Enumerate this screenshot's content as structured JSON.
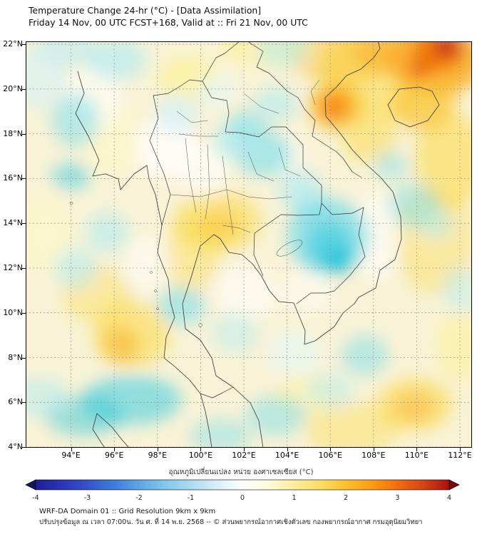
{
  "header": {
    "title": "Temperature Change 24-hr (°C) - [Data Assimilation]",
    "subtitle": "Friday 14 Nov, 00 UTC FCST+168, Valid at :: Fri 21 Nov, 00 UTC"
  },
  "chart_data": {
    "type": "heatmap",
    "title": "Temperature Change 24-hr (°C) - [Data Assimilation]",
    "subtitle": "Friday 14 Nov, 00 UTC FCST+168, Valid at :: Fri 21 Nov, 00 UTC",
    "region": "Thailand / Indochina",
    "base_color": "#f8f2d6",
    "grid": "dashed gray every 2 degrees",
    "x_axis": {
      "suffix": "°E",
      "ticks": [
        94,
        96,
        98,
        100,
        102,
        104,
        106,
        108,
        110,
        112
      ],
      "range": [
        91.9,
        112.56
      ]
    },
    "y_axis": {
      "suffix": "°N",
      "ticks": [
        22,
        20,
        18,
        16,
        14,
        12,
        10,
        8,
        6,
        4
      ],
      "range": [
        3.97,
        22.13
      ]
    },
    "colorbar": {
      "label": "อุณหภูมิเปลี่ยนแปลง หน่วย องศาเซลเซียส (°C)",
      "range": [
        -4,
        4
      ],
      "ticks": [
        -4,
        -3,
        -2,
        -1,
        0,
        1,
        2,
        3,
        4
      ],
      "tip_colors": [
        "#14145e",
        "#7a0808"
      ],
      "gradient": [
        [
          -4,
          "#1e1e96"
        ],
        [
          -3.5,
          "#2a35b8"
        ],
        [
          -3,
          "#3553cd"
        ],
        [
          -2.5,
          "#3f7bdc"
        ],
        [
          -2,
          "#5aa7e4"
        ],
        [
          -1.5,
          "#84c6ec"
        ],
        [
          -1,
          "#abdcf1"
        ],
        [
          -0.5,
          "#d8effa"
        ],
        [
          0,
          "#ffffff"
        ],
        [
          0.5,
          "#fffbdc"
        ],
        [
          1,
          "#ffec9e"
        ],
        [
          1.5,
          "#ffdc64"
        ],
        [
          2,
          "#ffc02e"
        ],
        [
          2.5,
          "#ff9c10"
        ],
        [
          3,
          "#f26d10"
        ],
        [
          3.5,
          "#d84315"
        ],
        [
          4,
          "#a81010"
        ]
      ]
    },
    "notable_regions": [
      {
        "area": "Gulf of Tonkin / NE corner (109-112E, 20-22N)",
        "change_c": "+2 to +4"
      },
      {
        "area": "orange spot near 106E, 19N",
        "change_c": "+2"
      },
      {
        "area": "southern Laos / central Vietnam (105-107E, 12-15N)",
        "change_c": "-1.5 to -2"
      },
      {
        "area": "northern Thailand / Laos (101-103E, 17-19N)",
        "change_c": "-1"
      },
      {
        "area": "central Thailand around Bangkok (100-102E, 13-15N)",
        "change_c": "+1"
      },
      {
        "area": "Andaman coast (95-98E, 8-10N)",
        "change_c": "+1 to +1.5"
      },
      {
        "area": "far southwest / Malacca (93-98E, 5-7N)",
        "change_c": "-1 to -1.5"
      },
      {
        "area": "remaining areas",
        "change_c": "0 to +0.5"
      }
    ],
    "field_blobs_format": [
      "lon",
      "lat",
      "rx_deg",
      "ry_deg",
      "color",
      "opacity"
    ],
    "field_blobs": [
      [
        109.0,
        20.8,
        3.5,
        2.2,
        "#fdd835",
        0.5
      ],
      [
        106.5,
        21.5,
        2.5,
        1.2,
        "#fbc02d",
        0.45
      ],
      [
        111.5,
        16.8,
        1.6,
        2.2,
        "#fdd835",
        0.5
      ],
      [
        110.8,
        13.2,
        1.8,
        2.4,
        "#fdd835",
        0.35
      ],
      [
        107.8,
        17.8,
        1.3,
        1.1,
        "#fdd835",
        0.45
      ],
      [
        100.8,
        14.1,
        2.0,
        1.4,
        "#fdd835",
        0.5
      ],
      [
        99.6,
        12.6,
        1.3,
        1.8,
        "#fdd835",
        0.35
      ],
      [
        96.8,
        9.0,
        1.8,
        1.5,
        "#fdd835",
        0.5
      ],
      [
        95.2,
        10.8,
        1.6,
        1.3,
        "#fdd835",
        0.35
      ],
      [
        109.9,
        5.9,
        1.8,
        1.2,
        "#fdd835",
        0.5
      ],
      [
        107.0,
        4.8,
        2.2,
        1.2,
        "#fdd835",
        0.35
      ],
      [
        99.4,
        20.4,
        1.4,
        1.1,
        "#fff176",
        0.45
      ],
      [
        103.0,
        21.9,
        2.2,
        0.9,
        "#fff176",
        0.4
      ],
      [
        95.8,
        17.8,
        1.4,
        1.6,
        "#fff9c4",
        0.5
      ],
      [
        92.8,
        13.5,
        1.2,
        1.8,
        "#fff9c4",
        0.5
      ],
      [
        112.0,
        8.5,
        1.2,
        1.6,
        "#fff176",
        0.35
      ],
      [
        104.8,
        6.2,
        1.5,
        1.0,
        "#fff176",
        0.3
      ],
      [
        98.4,
        17.4,
        1.4,
        1.4,
        "#ffffff",
        0.75
      ],
      [
        100.1,
        16.4,
        1.2,
        1.2,
        "#ffffff",
        0.6
      ],
      [
        95.0,
        19.6,
        1.4,
        1.4,
        "#ffffff",
        0.55
      ],
      [
        108.1,
        13.4,
        1.1,
        2.0,
        "#ffffff",
        0.55
      ],
      [
        102.1,
        10.9,
        1.5,
        1.2,
        "#ffffff",
        0.55
      ],
      [
        97.5,
        12.2,
        1.0,
        1.2,
        "#ffffff",
        0.5
      ],
      [
        104.0,
        17.0,
        0.9,
        0.9,
        "#ffffff",
        0.4
      ],
      [
        105.0,
        11.0,
        1.1,
        1.0,
        "#ffffff",
        0.45
      ],
      [
        105.9,
        13.4,
        1.9,
        1.7,
        "#80deea",
        0.75
      ],
      [
        106.0,
        13.0,
        1.1,
        1.1,
        "#4dd0e1",
        0.8
      ],
      [
        106.35,
        12.35,
        0.7,
        0.6,
        "#26c6da",
        0.8
      ],
      [
        105.2,
        14.6,
        0.9,
        0.8,
        "#80deea",
        0.6
      ],
      [
        104.6,
        15.5,
        1.0,
        0.9,
        "#b2ebf2",
        0.7
      ],
      [
        102.9,
        17.1,
        1.3,
        1.0,
        "#80deea",
        0.65
      ],
      [
        101.7,
        17.7,
        1.1,
        0.9,
        "#b2ebf2",
        0.75
      ],
      [
        102.2,
        18.4,
        0.9,
        0.7,
        "#80deea",
        0.5
      ],
      [
        103.5,
        19.3,
        1.0,
        0.8,
        "#b2ebf2",
        0.6
      ],
      [
        103.8,
        21.8,
        1.2,
        0.8,
        "#b2ebf2",
        0.55
      ],
      [
        96.1,
        21.3,
        1.4,
        0.9,
        "#b2ebf2",
        0.65
      ],
      [
        93.8,
        21.8,
        1.4,
        0.8,
        "#b2ebf2",
        0.55
      ],
      [
        92.5,
        20.5,
        1.3,
        1.4,
        "#d4f0f7",
        0.6
      ],
      [
        94.2,
        18.6,
        1.1,
        1.2,
        "#80deea",
        0.55
      ],
      [
        94.0,
        16.1,
        0.9,
        0.6,
        "#4dd0e1",
        0.55
      ],
      [
        95.7,
        13.6,
        1.0,
        0.9,
        "#b2ebf2",
        0.6
      ],
      [
        94.2,
        12.0,
        1.0,
        0.9,
        "#b2ebf2",
        0.55
      ],
      [
        99.1,
        10.3,
        1.1,
        0.85,
        "#80deea",
        0.6
      ],
      [
        101.6,
        9.1,
        1.1,
        0.9,
        "#b2ebf2",
        0.45
      ],
      [
        96.8,
        6.1,
        2.3,
        1.1,
        "#4dd0e1",
        0.6
      ],
      [
        94.6,
        5.4,
        1.8,
        0.9,
        "#26c6da",
        0.45
      ],
      [
        92.5,
        6.2,
        1.5,
        0.9,
        "#b2ebf2",
        0.5
      ],
      [
        100.9,
        4.5,
        1.4,
        0.8,
        "#80deea",
        0.45
      ],
      [
        103.5,
        5.4,
        1.4,
        0.9,
        "#80deea",
        0.5
      ],
      [
        106.0,
        6.5,
        1.1,
        0.8,
        "#b2ebf2",
        0.45
      ],
      [
        107.6,
        8.1,
        1.1,
        0.9,
        "#80deea",
        0.5
      ],
      [
        109.9,
        14.8,
        1.2,
        1.0,
        "#80deea",
        0.5
      ],
      [
        110.9,
        14.0,
        0.8,
        0.7,
        "#b2ebf2",
        0.5
      ],
      [
        108.8,
        16.6,
        0.8,
        0.65,
        "#80deea",
        0.45
      ],
      [
        112.0,
        11.0,
        0.8,
        1.0,
        "#b2ebf2",
        0.45
      ],
      [
        98.9,
        18.9,
        1.0,
        0.9,
        "#d4f0f7",
        0.7
      ],
      [
        100.7,
        19.9,
        0.9,
        0.7,
        "#e0f7fa",
        0.6
      ],
      [
        104.3,
        8.2,
        1.2,
        1.0,
        "#e0f7fa",
        0.55
      ],
      [
        110.9,
        21.3,
        2.3,
        1.5,
        "#f9a825",
        0.75
      ],
      [
        111.0,
        21.7,
        1.2,
        0.9,
        "#ef6c00",
        0.85
      ],
      [
        111.4,
        21.95,
        0.6,
        0.5,
        "#c62828",
        0.9
      ],
      [
        110.1,
        20.9,
        0.55,
        0.45,
        "#e65100",
        0.7
      ],
      [
        110.3,
        19.3,
        1.5,
        1.2,
        "#fbc02d",
        0.55
      ],
      [
        106.25,
        19.25,
        1.3,
        1.1,
        "#fbc02d",
        0.7
      ],
      [
        106.2,
        19.2,
        0.75,
        0.65,
        "#f57c00",
        0.75
      ],
      [
        108.6,
        21.6,
        1.5,
        0.9,
        "#f9a825",
        0.5
      ],
      [
        96.3,
        8.6,
        0.9,
        0.8,
        "#f9a825",
        0.45
      ],
      [
        100.9,
        13.9,
        1.0,
        0.7,
        "#fbc02d",
        0.45
      ],
      [
        109.9,
        5.8,
        1.0,
        0.7,
        "#f9a825",
        0.4
      ]
    ]
  },
  "footer": {
    "line1": "WRF-DA Domain 01 :: Grid Resolution 9km x 9km",
    "line2": "ปรับปรุงข้อมูล ณ เวลา 07:00น. วัน ศ. ที่ 14 พ.ย. 2568 -- © ส่วนพยากรณ์อากาศเชิงตัวเลข กองพยากรณ์อากาศ กรมอุตุนิยมวิทยา"
  }
}
